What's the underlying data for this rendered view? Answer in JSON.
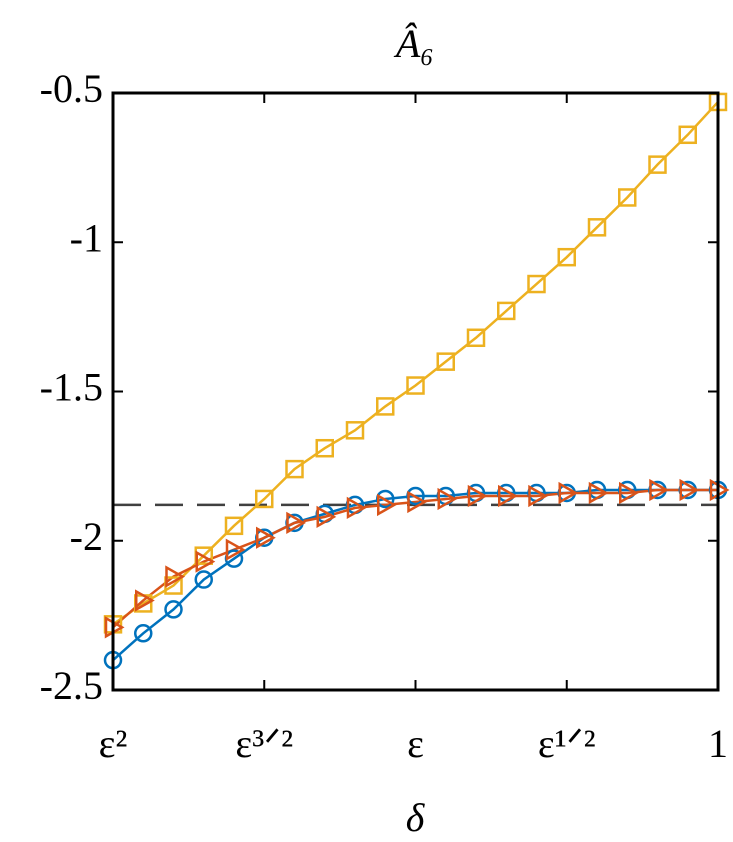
{
  "chart_data": {
    "type": "line",
    "title": "Â₆",
    "xlabel": "δ",
    "x": [
      2,
      1.9,
      1.8,
      1.7,
      1.6,
      1.5,
      1.4,
      1.3,
      1.2,
      1.1,
      1,
      0.9,
      0.8,
      0.7,
      0.6,
      0.5,
      0.4,
      0.3,
      0.2,
      0.1,
      0
    ],
    "xlim": [
      2,
      0
    ],
    "xticks": [
      {
        "value": 2,
        "label": "ε²"
      },
      {
        "value": 1.5,
        "label": "ε³ᐟ²"
      },
      {
        "value": 1,
        "label": "ε"
      },
      {
        "value": 0.5,
        "label": "ε¹ᐟ²"
      },
      {
        "value": 0,
        "label": "1"
      }
    ],
    "ylim": [
      -2.5,
      -0.5
    ],
    "yticks": [
      -2.5,
      -2,
      -1.5,
      -1,
      -0.5
    ],
    "reference_line": -1.88,
    "series": [
      {
        "color": "#edb120",
        "marker": "square",
        "values": [
          -2.28,
          -2.21,
          -2.15,
          -2.05,
          -1.95,
          -1.86,
          -1.76,
          -1.69,
          -1.63,
          -1.55,
          -1.48,
          -1.4,
          -1.32,
          -1.23,
          -1.14,
          -1.05,
          -0.95,
          -0.85,
          -0.74,
          -0.64,
          -0.53
        ]
      },
      {
        "color": "#0072bd",
        "marker": "circle",
        "values": [
          -2.4,
          -2.31,
          -2.23,
          -2.13,
          -2.06,
          -1.99,
          -1.94,
          -1.91,
          -1.88,
          -1.86,
          -1.85,
          -1.85,
          -1.84,
          -1.84,
          -1.84,
          -1.84,
          -1.83,
          -1.83,
          -1.83,
          -1.83,
          -1.83
        ]
      },
      {
        "color": "#d95319",
        "marker": "triangle",
        "values": [
          -2.29,
          -2.2,
          -2.12,
          -2.07,
          -2.03,
          -1.99,
          -1.94,
          -1.92,
          -1.89,
          -1.88,
          -1.87,
          -1.86,
          -1.85,
          -1.85,
          -1.85,
          -1.84,
          -1.84,
          -1.84,
          -1.83,
          -1.83,
          -1.83
        ]
      }
    ]
  }
}
